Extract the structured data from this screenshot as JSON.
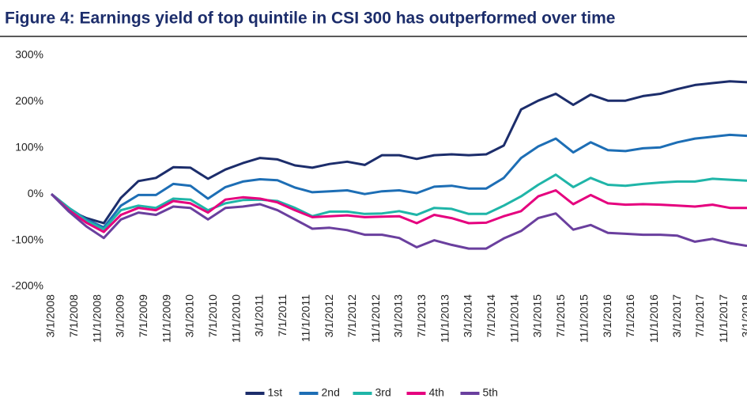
{
  "chart_data": {
    "type": "line",
    "title": "Figure 4: Earnings yield of top quintile in CSI 300 has outperformed over time",
    "x": [
      "3/1/2008",
      "6/1/2008",
      "9/1/2008",
      "12/1/2008",
      "3/1/2009",
      "6/1/2009",
      "9/1/2009",
      "12/1/2009",
      "3/1/2010",
      "6/1/2010",
      "9/1/2010",
      "12/1/2010",
      "3/1/2011",
      "6/1/2011",
      "9/1/2011",
      "12/1/2011",
      "3/1/2012",
      "6/1/2012",
      "9/1/2012",
      "12/1/2012",
      "3/1/2013",
      "6/1/2013",
      "9/1/2013",
      "12/1/2013",
      "3/1/2014",
      "6/1/2014",
      "9/1/2014",
      "12/1/2014",
      "3/1/2015",
      "6/1/2015",
      "9/1/2015",
      "12/1/2015",
      "3/1/2016",
      "6/1/2016",
      "9/1/2016",
      "12/1/2016",
      "3/1/2017",
      "6/1/2017",
      "9/1/2017",
      "12/1/2017",
      "3/1/2018"
    ],
    "xlim": [
      "3/1/2008",
      "3/1/2018"
    ],
    "xticks": [
      "3/1/2008",
      "7/1/2008",
      "11/1/2008",
      "3/1/2009",
      "7/1/2009",
      "11/1/2009",
      "3/1/2010",
      "7/1/2010",
      "11/1/2010",
      "3/1/2011",
      "7/1/2011",
      "11/1/2011",
      "3/1/2012",
      "7/1/2012",
      "11/1/2012",
      "3/1/2013",
      "7/1/2013",
      "11/1/2013",
      "3/1/2014",
      "7/1/2014",
      "11/1/2014",
      "3/1/2015",
      "7/1/2015",
      "11/1/2015",
      "3/1/2016",
      "7/1/2016",
      "11/1/2016",
      "3/1/2017",
      "7/1/2017",
      "11/1/2017",
      "3/1/2018"
    ],
    "ylim": [
      -200,
      300
    ],
    "yticks": [
      {
        "value": -200,
        "label": "-200%"
      },
      {
        "value": -100,
        "label": "-100%"
      },
      {
        "value": 0,
        "label": "0%"
      },
      {
        "value": 100,
        "label": "100%"
      },
      {
        "value": 200,
        "label": "200%"
      },
      {
        "value": 300,
        "label": "300%"
      }
    ],
    "legend": "bottom",
    "series": [
      {
        "name": "1st",
        "color": "#1c2d6b",
        "values": [
          0,
          -35,
          -52,
          -63,
          -8,
          28,
          35,
          58,
          57,
          33,
          53,
          67,
          78,
          75,
          62,
          57,
          65,
          70,
          63,
          84,
          84,
          76,
          84,
          86,
          84,
          86,
          105,
          183,
          202,
          217,
          193,
          215,
          202,
          202,
          212,
          217,
          227,
          236,
          240,
          244,
          242
        ]
      },
      {
        "name": "2nd",
        "color": "#1d6eb5",
        "values": [
          0,
          -30,
          -55,
          -72,
          -25,
          -2,
          -2,
          22,
          18,
          -10,
          15,
          27,
          32,
          30,
          14,
          4,
          6,
          8,
          0,
          6,
          8,
          2,
          16,
          18,
          12,
          12,
          35,
          78,
          103,
          120,
          90,
          112,
          95,
          93,
          99,
          101,
          112,
          120,
          124,
          128,
          126
        ]
      },
      {
        "name": "3rd",
        "color": "#1fb5a8",
        "values": [
          0,
          -30,
          -58,
          -76,
          -35,
          -25,
          -30,
          -10,
          -12,
          -35,
          -20,
          -13,
          -12,
          -15,
          -30,
          -48,
          -38,
          -38,
          -43,
          -42,
          -37,
          -45,
          -30,
          -32,
          -43,
          -43,
          -25,
          -5,
          20,
          42,
          15,
          35,
          20,
          18,
          22,
          25,
          27,
          27,
          33,
          31,
          29
        ]
      },
      {
        "name": "4th",
        "color": "#e5007e",
        "values": [
          0,
          -35,
          -62,
          -82,
          -45,
          -30,
          -35,
          -15,
          -20,
          -40,
          -12,
          -7,
          -10,
          -18,
          -35,
          -50,
          -48,
          -46,
          -50,
          -49,
          -48,
          -63,
          -45,
          -52,
          -63,
          -62,
          -48,
          -37,
          -5,
          8,
          -22,
          -2,
          -20,
          -23,
          -22,
          -23,
          -25,
          -27,
          -23,
          -30,
          -30
        ]
      },
      {
        "name": "5th",
        "color": "#6a3f9e",
        "values": [
          0,
          -38,
          -70,
          -95,
          -55,
          -40,
          -45,
          -27,
          -30,
          -55,
          -30,
          -27,
          -22,
          -35,
          -55,
          -75,
          -73,
          -78,
          -88,
          -88,
          -95,
          -115,
          -100,
          -110,
          -118,
          -118,
          -96,
          -80,
          -52,
          -42,
          -77,
          -67,
          -84,
          -86,
          -88,
          -88,
          -90,
          -103,
          -97,
          -106,
          -112
        ]
      }
    ]
  }
}
